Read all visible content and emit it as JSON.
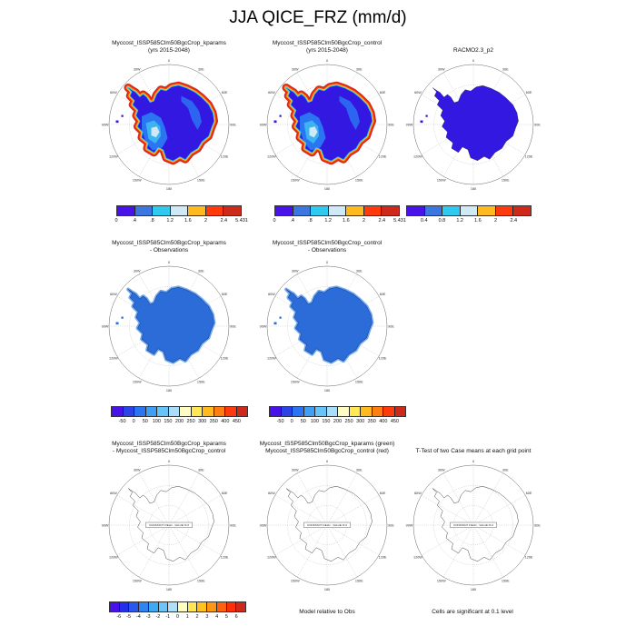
{
  "title": "JJA QICE_FRZ (mm/d)",
  "colors": {
    "interior_deep": "#3318E2",
    "interior_mid": "#2B74F2",
    "interior_cyan": "#3DB4F2",
    "interior_pale": "#CFE9F6",
    "fringe_outer": "#CE2A1B",
    "fringe_orange": "#FF3B0E",
    "fringe_gold": "#FFBA1F",
    "fringe_cyan": "#2FC9F0",
    "diff_fill": "#2B6CD9",
    "diff_fringe": "#6FA8F0",
    "diff_edge": "#16408C"
  },
  "map": {
    "lon_labels": [
      "0",
      "30E",
      "60E",
      "90E",
      "120E",
      "150E",
      "180",
      "150W",
      "120W",
      "90W",
      "60W",
      "30W"
    ],
    "constant_field_label": "CONSTANT FIELD - VALUE IS 0"
  },
  "panels": [
    {
      "title_line1": "Myccost_ISSP585Clm50BgcCrop_kparams",
      "title_line2": "(yrs 2015-2048)",
      "colorbar": {
        "colors": [
          "#4713E8",
          "#3C76E0",
          "#30C9F0",
          "#CFE9F6",
          "#FFBA1F",
          "#FF3B0E",
          "#CE2A1B"
        ],
        "labels": [
          "0",
          ".4",
          ".8",
          "1.2",
          "1.6",
          "2",
          "2.4",
          "5.431"
        ],
        "label_mode": "edges"
      }
    },
    {
      "title_line1": "Myccost_ISSP585Clm50BgcCrop_control",
      "title_line2": "(yrs 2015-2048)",
      "colorbar": {
        "colors": [
          "#4713E8",
          "#3C76E0",
          "#30C9F0",
          "#CFE9F6",
          "#FFBA1F",
          "#FF3B0E",
          "#CE2A1B"
        ],
        "labels": [
          "0",
          ".4",
          ".8",
          "1.2",
          "1.6",
          "2",
          "2.4",
          "5.431"
        ],
        "label_mode": "edges"
      }
    },
    {
      "title_line1": "RACMO2.3_p2",
      "title_line2": "",
      "colorbar": {
        "colors": [
          "#4713E8",
          "#3C76E0",
          "#30C9F0",
          "#CFE9F6",
          "#FFBA1F",
          "#FF3B0E",
          "#CE2A1B"
        ],
        "labels": [
          "0.4",
          "0.8",
          "1.2",
          "1.6",
          "2",
          "2.4"
        ],
        "label_mode": "interior"
      }
    },
    {
      "title_line1": "Myccost_ISSP585Clm50BgcCrop_kparams",
      "title_line2": "- Observations",
      "colorbar": {
        "colors": [
          "#4713E8",
          "#2A44E8",
          "#2B74F2",
          "#3F9FF6",
          "#66C4F8",
          "#A9DDF9",
          "#FEFBC3",
          "#FFE854",
          "#FFBA1F",
          "#FF7D12",
          "#FF3B0E",
          "#CE2A1B"
        ],
        "labels": [
          "-50",
          "0",
          "50",
          "100",
          "150",
          "200",
          "250",
          "300",
          "350",
          "400",
          "450"
        ],
        "label_mode": "interior"
      }
    },
    {
      "title_line1": "Myccost_ISSP585Clm50BgcCrop_control",
      "title_line2": "- Observations",
      "colorbar": {
        "colors": [
          "#4713E8",
          "#2A44E8",
          "#2B74F2",
          "#3F9FF6",
          "#66C4F8",
          "#A9DDF9",
          "#FEFBC3",
          "#FFE854",
          "#FFBA1F",
          "#FF7D12",
          "#FF3B0E",
          "#CE2A1B"
        ],
        "labels": [
          "-50",
          "0",
          "50",
          "100",
          "150",
          "200",
          "250",
          "300",
          "350",
          "400",
          "450"
        ],
        "label_mode": "interior"
      }
    },
    {
      "title_line1": "Myccost_ISSP585Clm50BgcCrop_kparams",
      "title_line2": "- Myccost_ISSP585Clm50BgcCrop_control",
      "colorbar": {
        "colors": [
          "#4713E8",
          "#2430EA",
          "#2B57EE",
          "#2F83F3",
          "#3FA9F6",
          "#6AC6F8",
          "#AEE0F9",
          "#FEFBC3",
          "#FFE854",
          "#FFC21F",
          "#FF9614",
          "#FF620F",
          "#FF2F0C",
          "#CE2A1B"
        ],
        "labels": [
          "-6",
          "-5",
          "-4",
          "-3",
          "-2",
          "-1",
          "0",
          "1",
          "2",
          "3",
          "4",
          "5",
          "6"
        ],
        "label_mode": "interior"
      }
    },
    {
      "title_line1": "Myccost_ISSP585Clm50BgcCrop_kparams (green)",
      "title_line2": "Myccost_ISSP585Clm50BgcCrop_control (red)"
    },
    {
      "title_line1": "T-Test of two Case means at each grid point",
      "title_line2": ""
    }
  ],
  "footer": {
    "model_note": "Model relative to Obs",
    "significance_note": "Cells are significant at 0.1 level"
  },
  "chart_data": [
    {
      "type": "heatmap",
      "panel": "top-left",
      "title": "Myccost_ISSP585Clm50BgcCrop_kparams (yrs 2015-2048)",
      "variable": "JJA QICE_FRZ",
      "units": "mm/d",
      "projection": "south polar stereographic (Antarctica)",
      "levels": [
        0,
        0.4,
        0.8,
        1.2,
        1.6,
        2,
        2.4,
        5.431
      ],
      "legend_position": "below"
    },
    {
      "type": "heatmap",
      "panel": "top-middle",
      "title": "Myccost_ISSP585Clm50BgcCrop_control (yrs 2015-2048)",
      "variable": "JJA QICE_FRZ",
      "units": "mm/d",
      "projection": "south polar stereographic (Antarctica)",
      "levels": [
        0,
        0.4,
        0.8,
        1.2,
        1.6,
        2,
        2.4,
        5.431
      ],
      "legend_position": "below"
    },
    {
      "type": "heatmap",
      "panel": "top-right",
      "title": "RACMO2.3_p2",
      "variable": "JJA QICE_FRZ",
      "units": "mm/d",
      "projection": "south polar stereographic (Antarctica)",
      "levels": [
        0.4,
        0.8,
        1.2,
        1.6,
        2,
        2.4
      ],
      "legend_position": "below"
    },
    {
      "type": "heatmap",
      "panel": "middle-left",
      "title": "Myccost_ISSP585Clm50BgcCrop_kparams - Observations",
      "units": "mm/d",
      "projection": "south polar stereographic (Antarctica)",
      "levels": [
        -50,
        0,
        50,
        100,
        150,
        200,
        250,
        300,
        350,
        400,
        450
      ],
      "legend_position": "below"
    },
    {
      "type": "heatmap",
      "panel": "middle-middle",
      "title": "Myccost_ISSP585Clm50BgcCrop_control - Observations",
      "units": "mm/d",
      "projection": "south polar stereographic (Antarctica)",
      "levels": [
        -50,
        0,
        50,
        100,
        150,
        200,
        250,
        300,
        350,
        400,
        450
      ],
      "legend_position": "below"
    },
    {
      "type": "heatmap",
      "panel": "bottom-left",
      "title": "Myccost_ISSP585Clm50BgcCrop_kparams - Myccost_ISSP585Clm50BgcCrop_control",
      "projection": "south polar stereographic (Antarctica)",
      "levels": [
        -6,
        -5,
        -4,
        -3,
        -2,
        -1,
        0,
        1,
        2,
        3,
        4,
        5,
        6
      ],
      "annotation": "CONSTANT FIELD - VALUE IS 0",
      "footnote": "Model relative to Obs"
    },
    {
      "type": "contour",
      "panel": "bottom-middle",
      "title": "Myccost_ISSP585Clm50BgcCrop_kparams (green) / Myccost_ISSP585Clm50BgcCrop_control (red)",
      "projection": "south polar stereographic (Antarctica)",
      "annotation": "CONSTANT FIELD - VALUE IS 0"
    },
    {
      "type": "significance-map",
      "panel": "bottom-right",
      "title": "T-Test of two Case means at each grid point",
      "projection": "south polar stereographic (Antarctica)",
      "annotation": "CONSTANT FIELD - VALUE IS 0",
      "footnote": "Cells are significant at 0.1 level"
    }
  ]
}
